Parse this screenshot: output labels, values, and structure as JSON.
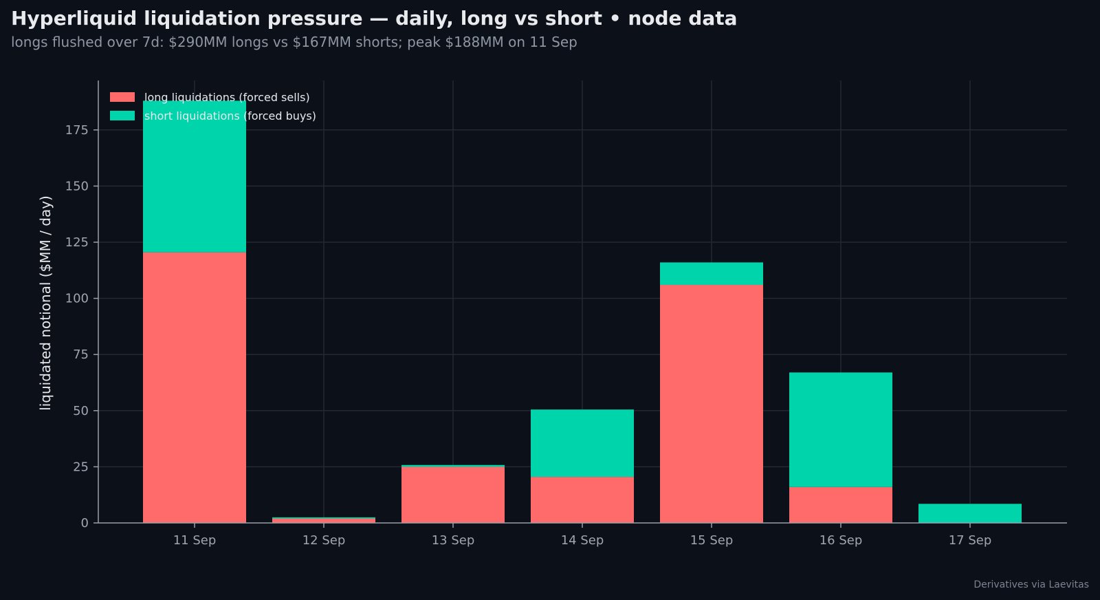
{
  "header": {
    "title": "Hyperliquid liquidation pressure — daily, long vs short  •  node data",
    "subtitle": "longs flushed over 7d: $290MM longs vs $167MM shorts; peak $188MM on 11 Sep"
  },
  "footer": {
    "source": "Derivatives via Laevitas"
  },
  "colors": {
    "background": "#0c1018",
    "long": "#ff6b6b",
    "short": "#00d4aa",
    "grid": "#232833",
    "axis": "#9aa0ab"
  },
  "chart_data": {
    "type": "bar",
    "stacked": true,
    "title": "Hyperliquid liquidation pressure — daily, long vs short  •  node data",
    "subtitle": "longs flushed over 7d: $290MM longs vs $167MM shorts; peak $188MM on 11 Sep",
    "xlabel": "",
    "ylabel": "liquidated notional ($MM / day)",
    "categories": [
      "11 Sep",
      "12 Sep",
      "13 Sep",
      "14 Sep",
      "15 Sep",
      "16 Sep",
      "17 Sep"
    ],
    "series": [
      {
        "name": "long liquidations (forced sells)",
        "color": "#ff6b6b",
        "values": [
          120.5,
          2.0,
          25.0,
          20.5,
          106.0,
          16.0,
          0.0
        ]
      },
      {
        "name": "short liquidations (forced buys)",
        "color": "#00d4aa",
        "values": [
          67.5,
          0.5,
          0.8,
          30.0,
          10.0,
          51.0,
          8.5
        ]
      }
    ],
    "ylim": [
      0,
      197
    ],
    "yticks": [
      0,
      25,
      50,
      75,
      100,
      125,
      150,
      175
    ],
    "grid": true,
    "legend_position": "top-left"
  }
}
